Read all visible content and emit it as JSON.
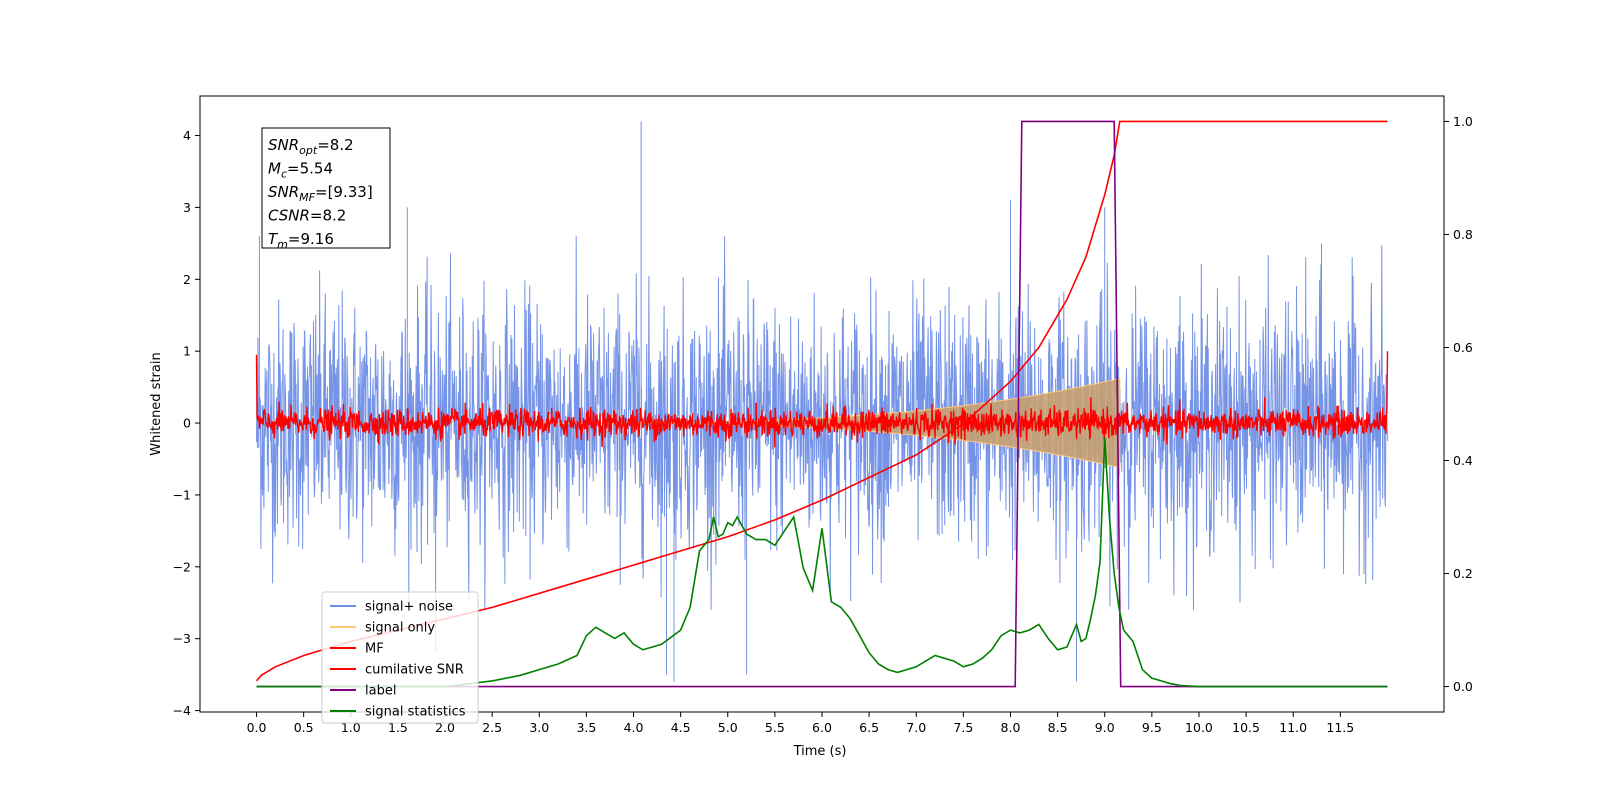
{
  "chart_data": {
    "type": "line",
    "xlabel": "Time (s)",
    "ylabel": "Whitened strain",
    "xlim": [
      -0.6,
      12.6
    ],
    "ylim_left": [
      -4.02,
      4.55
    ],
    "ylim_right": [
      -0.045,
      1.045
    ],
    "x_ticks": [
      0.0,
      0.5,
      1.0,
      1.5,
      2.0,
      2.5,
      3.0,
      3.5,
      4.0,
      4.5,
      5.0,
      5.5,
      6.0,
      6.5,
      7.0,
      7.5,
      8.0,
      8.5,
      9.0,
      9.5,
      10.0,
      10.5,
      11.0,
      11.5
    ],
    "x_tick_labels": [
      "0.0",
      "0.5",
      "1.0",
      "1.5",
      "2.0",
      "2.5",
      "3.0",
      "3.5",
      "4.0",
      "4.5",
      "5.0",
      "5.5",
      "6.0",
      "6.5",
      "7.0",
      "7.5",
      "8.0",
      "8.5",
      "9.0",
      "9.5",
      "10.0",
      "10.5",
      "11.0",
      "11.5"
    ],
    "y_ticks_left": [
      4,
      3,
      2,
      1,
      0,
      -1,
      -2,
      -3,
      -4
    ],
    "y_tick_labels_left": [
      "4",
      "3",
      "2",
      "1",
      "0",
      "−1",
      "−2",
      "−3",
      "−4"
    ],
    "y_ticks_right": [
      1.0,
      0.8,
      0.6,
      0.4,
      0.2,
      0.0
    ],
    "y_tick_labels_right": [
      "1.0",
      "0.8",
      "0.6",
      "0.4",
      "0.2",
      "0.0"
    ],
    "legend": {
      "placement": "lower-left",
      "entries": [
        {
          "label": "signal+ noise",
          "color": "#6f8ee6"
        },
        {
          "label": "signal only",
          "color": "#ffc87a"
        },
        {
          "label": "MF",
          "color": "#ff0000"
        },
        {
          "label": "cumilative SNR",
          "color": "#ff0000"
        },
        {
          "label": "label",
          "color": "#800080"
        },
        {
          "label": "signal statistics",
          "color": "#008000"
        }
      ]
    },
    "info_box": {
      "lines": [
        {
          "name": "SNR",
          "sub": "opt",
          "value": "=8.2"
        },
        {
          "name": "M",
          "sub": "c",
          "value": "=5.54"
        },
        {
          "name": "SNR",
          "sub": "MF",
          "value": "=[9.33]"
        },
        {
          "name": "CSNR",
          "sub": "",
          "value": "=8.2"
        },
        {
          "name": "T",
          "sub": "m",
          "value": "=9.16"
        }
      ]
    },
    "series": [
      {
        "name": "signal+ noise",
        "axis": "left",
        "color": "#6f8ee6",
        "x_range": [
          0.0,
          12.0
        ],
        "envelope_max": 2.0,
        "envelope_min": -2.0,
        "spikes": [
          [
            0.03,
            2.6
          ],
          [
            4.08,
            4.2
          ],
          [
            4.43,
            -3.6
          ],
          [
            4.35,
            -3.5
          ],
          [
            5.2,
            -3.5
          ],
          [
            8.0,
            3.1
          ],
          [
            8.7,
            -3.6
          ],
          [
            9.0,
            3.0
          ],
          [
            11.3,
            2.5
          ],
          [
            1.6,
            3.0
          ],
          [
            1.9,
            -3.2
          ]
        ]
      },
      {
        "name": "signal only",
        "axis": "left",
        "color": "#ffc87a",
        "chirp_start": 3.0,
        "chirp_end": 9.16,
        "peak_amplitude": 0.62
      },
      {
        "name": "MF",
        "axis": "left",
        "color": "#ff0000",
        "x_range": [
          0.0,
          12.0
        ],
        "noise_amplitude": 0.1,
        "edge_values": [
          0.95,
          1.0
        ]
      },
      {
        "name": "cumilative SNR",
        "axis": "right",
        "color": "#ff0000",
        "x": [
          0.0,
          0.05,
          0.2,
          0.5,
          1.0,
          1.5,
          2.0,
          2.5,
          3.0,
          3.5,
          4.0,
          4.5,
          5.0,
          5.5,
          6.0,
          6.5,
          7.0,
          7.5,
          8.0,
          8.3,
          8.6,
          8.8,
          9.0,
          9.1,
          9.16,
          9.3,
          12.0
        ],
        "y": [
          0.01,
          0.02,
          0.035,
          0.055,
          0.08,
          0.1,
          0.12,
          0.14,
          0.165,
          0.19,
          0.215,
          0.24,
          0.265,
          0.295,
          0.33,
          0.37,
          0.41,
          0.465,
          0.54,
          0.6,
          0.685,
          0.76,
          0.87,
          0.94,
          1.0,
          1.0,
          1.0
        ]
      },
      {
        "name": "label",
        "axis": "right",
        "color": "#800080",
        "x": [
          0.0,
          8.05,
          8.12,
          9.1,
          9.17,
          12.0
        ],
        "y": [
          0.0,
          0.0,
          1.0,
          1.0,
          0.0,
          0.0
        ]
      },
      {
        "name": "signal statistics",
        "axis": "right",
        "color": "#008000",
        "x": [
          0.0,
          1.0,
          2.0,
          2.5,
          2.8,
          3.0,
          3.2,
          3.4,
          3.5,
          3.6,
          3.7,
          3.8,
          3.9,
          4.0,
          4.1,
          4.2,
          4.3,
          4.5,
          4.6,
          4.7,
          4.8,
          4.85,
          4.9,
          4.95,
          5.0,
          5.05,
          5.1,
          5.2,
          5.3,
          5.4,
          5.5,
          5.6,
          5.7,
          5.8,
          5.9,
          6.0,
          6.1,
          6.2,
          6.3,
          6.4,
          6.5,
          6.6,
          6.7,
          6.8,
          6.9,
          7.0,
          7.1,
          7.2,
          7.3,
          7.4,
          7.5,
          7.6,
          7.7,
          7.8,
          7.9,
          8.0,
          8.1,
          8.2,
          8.3,
          8.4,
          8.5,
          8.6,
          8.7,
          8.75,
          8.8,
          8.85,
          8.9,
          8.95,
          9.0,
          9.05,
          9.1,
          9.15,
          9.2,
          9.3,
          9.4,
          9.5,
          9.6,
          9.7,
          9.8,
          9.9,
          10.0,
          10.5,
          11.0,
          11.5,
          12.0
        ],
        "y": [
          0.0,
          0.0,
          0.0,
          0.01,
          0.02,
          0.03,
          0.04,
          0.055,
          0.09,
          0.105,
          0.095,
          0.085,
          0.095,
          0.075,
          0.065,
          0.07,
          0.075,
          0.1,
          0.14,
          0.24,
          0.26,
          0.3,
          0.265,
          0.27,
          0.29,
          0.285,
          0.3,
          0.27,
          0.26,
          0.26,
          0.25,
          0.275,
          0.3,
          0.21,
          0.17,
          0.28,
          0.15,
          0.14,
          0.12,
          0.09,
          0.06,
          0.04,
          0.03,
          0.025,
          0.03,
          0.035,
          0.045,
          0.055,
          0.05,
          0.045,
          0.035,
          0.04,
          0.05,
          0.065,
          0.09,
          0.1,
          0.095,
          0.1,
          0.11,
          0.085,
          0.065,
          0.07,
          0.11,
          0.08,
          0.085,
          0.12,
          0.16,
          0.22,
          0.44,
          0.3,
          0.2,
          0.14,
          0.1,
          0.08,
          0.03,
          0.015,
          0.01,
          0.005,
          0.002,
          0.001,
          0.0,
          0.0,
          0.0,
          0.0,
          0.0
        ]
      }
    ]
  }
}
